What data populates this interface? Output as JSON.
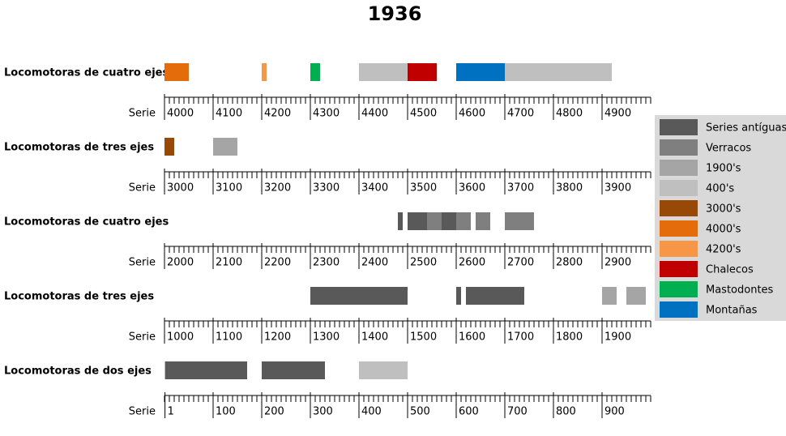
{
  "chart_data": {
    "type": "range",
    "title": "1936",
    "legend": [
      {
        "name": "Series antíguas",
        "color": "#595959"
      },
      {
        "name": "Verracos",
        "color": "#7f7f7f"
      },
      {
        "name": "1900's",
        "color": "#a5a5a5"
      },
      {
        "name": "400's",
        "color": "#bfbfbf"
      },
      {
        "name": "3000's",
        "color": "#984807"
      },
      {
        "name": "4000's",
        "color": "#e46c0a"
      },
      {
        "name": "4200's",
        "color": "#f79646"
      },
      {
        "name": "Chalecos",
        "color": "#c00000"
      },
      {
        "name": "Mastodontes",
        "color": "#00b050"
      },
      {
        "name": "Montañas",
        "color": "#0070c0"
      }
    ],
    "rows": [
      {
        "label": "Locomotoras de cuatro ejes",
        "xlabel": "Serie",
        "xlim": [
          4000,
          5000
        ],
        "minor_tick_interval": 10,
        "xticks": [
          4000,
          4100,
          4200,
          4300,
          4400,
          4500,
          4600,
          4700,
          4800,
          4900
        ],
        "bars": [
          {
            "start": 4000,
            "end": 4050,
            "color": "#e46c0a"
          },
          {
            "start": 4200,
            "end": 4210,
            "color": "#f79646"
          },
          {
            "start": 4300,
            "end": 4320,
            "color": "#00b050"
          },
          {
            "start": 4400,
            "end": 4500,
            "color": "#bfbfbf"
          },
          {
            "start": 4500,
            "end": 4560,
            "color": "#c00000"
          },
          {
            "start": 4600,
            "end": 4700,
            "color": "#0070c0"
          },
          {
            "start": 4700,
            "end": 4920,
            "color": "#bfbfbf"
          }
        ]
      },
      {
        "label": "Locomotoras de tres ejes",
        "xlabel": "Serie",
        "xlim": [
          3000,
          4000
        ],
        "minor_tick_interval": 10,
        "xticks": [
          3000,
          3100,
          3200,
          3300,
          3400,
          3500,
          3600,
          3700,
          3800,
          3900
        ],
        "bars": [
          {
            "start": 3000,
            "end": 3020,
            "color": "#984807"
          },
          {
            "start": 3100,
            "end": 3150,
            "color": "#a5a5a5"
          }
        ]
      },
      {
        "label": "Locomotoras de cuatro ejes",
        "xlabel": "Serie",
        "xlim": [
          2000,
          3000
        ],
        "minor_tick_interval": 10,
        "xticks": [
          2000,
          2100,
          2200,
          2300,
          2400,
          2500,
          2600,
          2700,
          2800,
          2900
        ],
        "bars": [
          {
            "start": 2480,
            "end": 2490,
            "color": "#595959"
          },
          {
            "start": 2500,
            "end": 2540,
            "color": "#595959"
          },
          {
            "start": 2540,
            "end": 2570,
            "color": "#7f7f7f"
          },
          {
            "start": 2570,
            "end": 2600,
            "color": "#595959"
          },
          {
            "start": 2600,
            "end": 2630,
            "color": "#7f7f7f"
          },
          {
            "start": 2640,
            "end": 2670,
            "color": "#7f7f7f"
          },
          {
            "start": 2700,
            "end": 2760,
            "color": "#7f7f7f"
          }
        ]
      },
      {
        "label": "Locomotoras de tres ejes",
        "xlabel": "Serie",
        "xlim": [
          1000,
          2000
        ],
        "minor_tick_interval": 10,
        "xticks": [
          1000,
          1100,
          1200,
          1300,
          1400,
          1500,
          1600,
          1700,
          1800,
          1900
        ],
        "bars": [
          {
            "start": 1300,
            "end": 1500,
            "color": "#595959"
          },
          {
            "start": 1600,
            "end": 1610,
            "color": "#595959"
          },
          {
            "start": 1620,
            "end": 1740,
            "color": "#595959"
          },
          {
            "start": 1900,
            "end": 1930,
            "color": "#a5a5a5"
          },
          {
            "start": 1950,
            "end": 1990,
            "color": "#a5a5a5"
          }
        ]
      },
      {
        "label": "Locomotoras de dos ejes",
        "xlabel": "Serie",
        "xlim": [
          0,
          1000
        ],
        "minor_tick_interval": 10,
        "xticks": [
          1,
          100,
          200,
          300,
          400,
          500,
          600,
          700,
          800,
          900
        ],
        "bars": [
          {
            "start": 1,
            "end": 170,
            "color": "#595959"
          },
          {
            "start": 200,
            "end": 330,
            "color": "#595959"
          },
          {
            "start": 400,
            "end": 500,
            "color": "#bfbfbf"
          }
        ]
      }
    ]
  }
}
